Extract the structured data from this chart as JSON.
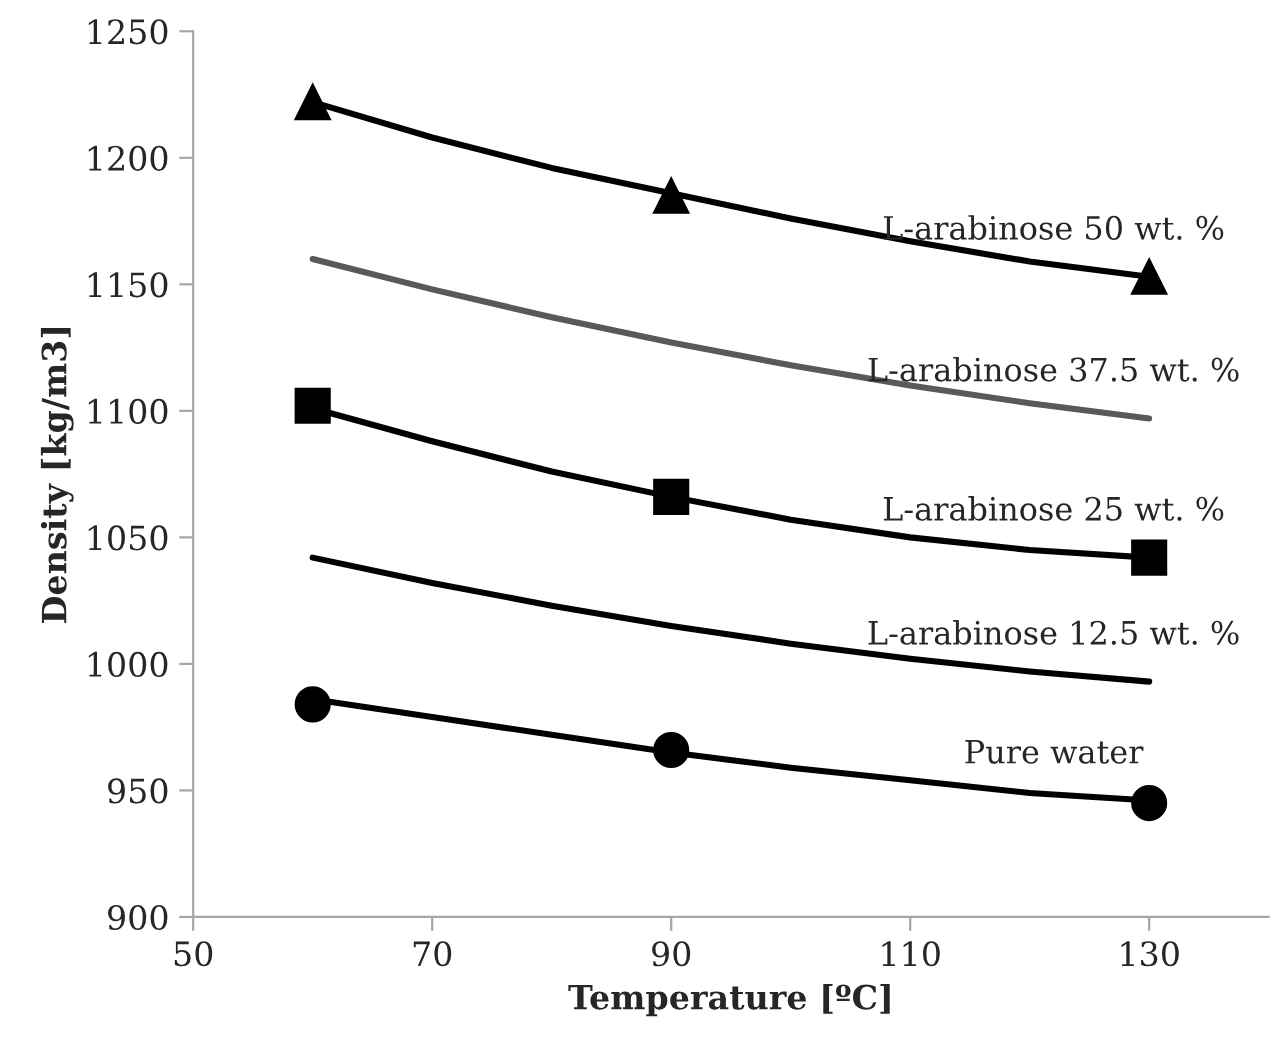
{
  "chart_data": {
    "type": "line",
    "xlabel": "Temperature [ºC]",
    "ylabel": "Density [kg/m3]",
    "xlim": [
      50,
      140
    ],
    "xticks": [
      50,
      70,
      90,
      110,
      130
    ],
    "ylim": [
      900,
      1250
    ],
    "yticks": [
      900,
      950,
      1000,
      1050,
      1100,
      1150,
      1200,
      1250
    ],
    "grid": false,
    "legend": false,
    "line_style": "solid",
    "marker": "none",
    "series": [
      {
        "name": "L-arabinose 50 wt. %",
        "color": "#000000",
        "x": [
          60,
          70,
          80,
          90,
          100,
          110,
          120,
          130
        ],
        "values": [
          1222,
          1208,
          1196,
          1186,
          1176,
          1167,
          1159,
          1153
        ]
      },
      {
        "type": "scatter",
        "color": "#000000",
        "marker": "triangle",
        "x": [
          60,
          90,
          130
        ],
        "values": [
          1222,
          1185,
          1153
        ]
      },
      {
        "name": "L-arabinose 37.5 wt. %",
        "color": "#595959",
        "x": [
          60,
          70,
          80,
          90,
          100,
          110,
          120,
          130
        ],
        "values": [
          1160,
          1148,
          1137,
          1127,
          1118,
          1110,
          1103,
          1097
        ]
      },
      {
        "name": "L-arabinose 25 wt. %",
        "color": "#000000",
        "x": [
          60,
          70,
          80,
          90,
          100,
          110,
          120,
          130
        ],
        "values": [
          1101,
          1088,
          1076,
          1066,
          1057,
          1050,
          1045,
          1042
        ]
      },
      {
        "type": "scatter",
        "color": "#000000",
        "marker": "square",
        "x": [
          60,
          90,
          130
        ],
        "values": [
          1102,
          1066,
          1042
        ]
      },
      {
        "name": "L-arabinose 12.5 wt. %",
        "color": "#000000",
        "x": [
          60,
          70,
          80,
          90,
          100,
          110,
          120,
          130
        ],
        "values": [
          1042,
          1032,
          1023,
          1015,
          1008,
          1002,
          997,
          993
        ]
      },
      {
        "name": "Pure water",
        "color": "#000000",
        "x": [
          60,
          70,
          80,
          90,
          100,
          110,
          120,
          130
        ],
        "values": [
          986,
          979,
          972,
          965,
          959,
          954,
          949,
          946
        ]
      },
      {
        "type": "scatter",
        "color": "#000000",
        "marker": "circle",
        "x": [
          60,
          90,
          130
        ],
        "values": [
          984,
          966,
          945
        ]
      }
    ]
  }
}
